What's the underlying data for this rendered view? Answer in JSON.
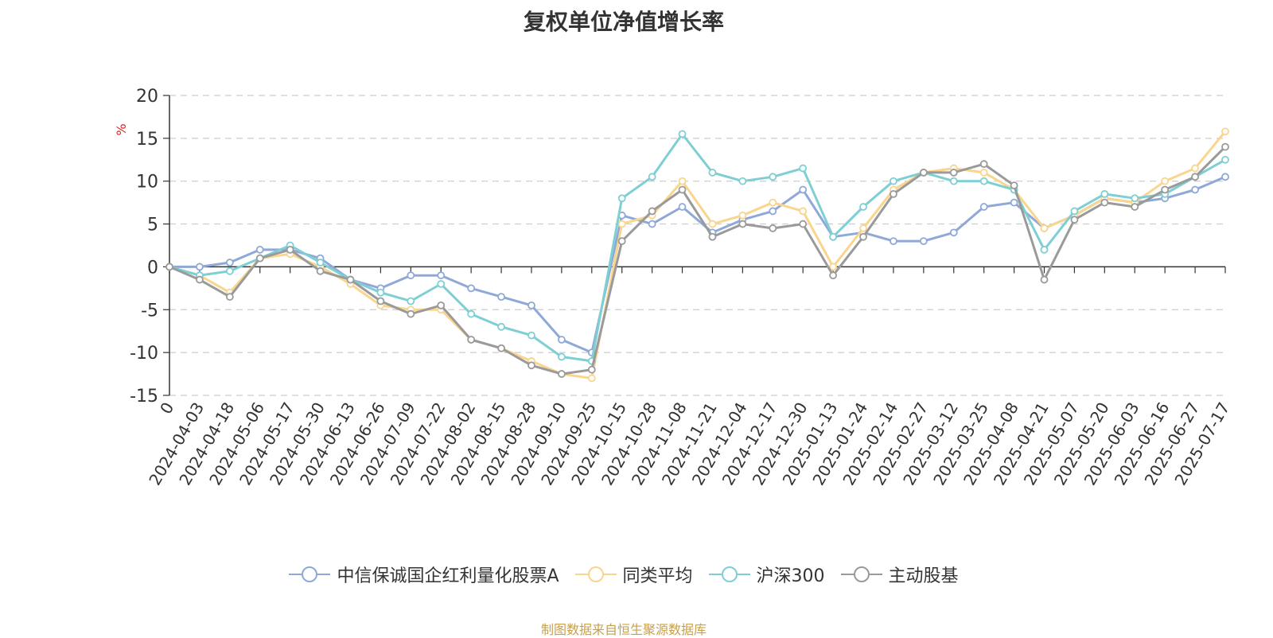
{
  "chart_data": {
    "type": "line",
    "title": "复权单位净值增长率",
    "ylabel": "%",
    "ylim": [
      -15,
      20
    ],
    "yticks": [
      "-15",
      "-10",
      "-5",
      "0",
      "5",
      "10",
      "15",
      "20"
    ],
    "grid": true,
    "legend_position": "bottom",
    "x_labels": [
      "0",
      "2024-04-03",
      "2024-04-18",
      "2024-05-06",
      "2024-05-17",
      "2024-05-30",
      "2024-06-13",
      "2024-06-26",
      "2024-07-09",
      "2024-07-22",
      "2024-08-02",
      "2024-08-15",
      "2024-08-28",
      "2024-09-10",
      "2024-09-25",
      "2024-10-15",
      "2024-10-28",
      "2024-11-08",
      "2024-11-21",
      "2024-12-04",
      "2024-12-17",
      "2024-12-30",
      "2025-01-13",
      "2025-01-24",
      "2025-02-14",
      "2025-02-27",
      "2025-03-12",
      "2025-03-25",
      "2025-04-08",
      "2025-04-21",
      "2025-05-07",
      "2025-05-20",
      "2025-06-03",
      "2025-06-16",
      "2025-06-27",
      "2025-07-17"
    ],
    "series": [
      {
        "name": "中信保诚国企红利量化股票A",
        "color": "#8fa8d8",
        "values": [
          0,
          0,
          0.5,
          2,
          2,
          1,
          -1.5,
          -2.5,
          -1,
          -1,
          -2.5,
          -3.5,
          -4.5,
          -8.5,
          -10,
          6,
          5,
          7,
          4,
          5.5,
          6.5,
          9,
          3.5,
          4,
          3,
          3,
          4,
          7,
          7.5,
          4.5,
          6,
          8,
          7.5,
          8,
          9,
          10.5
        ]
      },
      {
        "name": "同类平均",
        "color": "#f9d58e",
        "values": [
          0,
          -1,
          -3,
          1,
          1.5,
          0,
          -2,
          -4.5,
          -5,
          -5,
          -8.5,
          -9.5,
          -11,
          -12.5,
          -13,
          5,
          6,
          10,
          5,
          6,
          7.5,
          6.5,
          0,
          4.5,
          9,
          11,
          11.5,
          11,
          9,
          4.5,
          6,
          8,
          7.5,
          10,
          11.5,
          15.8
        ]
      },
      {
        "name": "沪深300",
        "color": "#7ecfd4",
        "values": [
          0,
          -1,
          -0.5,
          1,
          2.5,
          0.5,
          -1.5,
          -3,
          -4,
          -2,
          -5.5,
          -7,
          -8,
          -10.5,
          -11,
          8,
          10.5,
          15.5,
          11,
          10,
          10.5,
          11.5,
          3.5,
          7,
          10,
          11,
          10,
          10,
          9,
          2,
          6.5,
          8.5,
          8,
          8.5,
          10.5,
          12.5
        ]
      },
      {
        "name": "主动股基",
        "color": "#9a9a9a",
        "values": [
          0,
          -1.5,
          -3.5,
          1,
          2,
          -0.5,
          -1.5,
          -4,
          -5.5,
          -4.5,
          -8.5,
          -9.5,
          -11.5,
          -12.5,
          -12,
          3,
          6.5,
          9,
          3.5,
          5,
          4.5,
          5,
          -1,
          3.5,
          8.5,
          11,
          11,
          12,
          9.5,
          -1.5,
          5.5,
          7.5,
          7,
          9,
          10.5,
          14
        ]
      }
    ]
  },
  "source_text": "制图数据来自恒生聚源数据库"
}
